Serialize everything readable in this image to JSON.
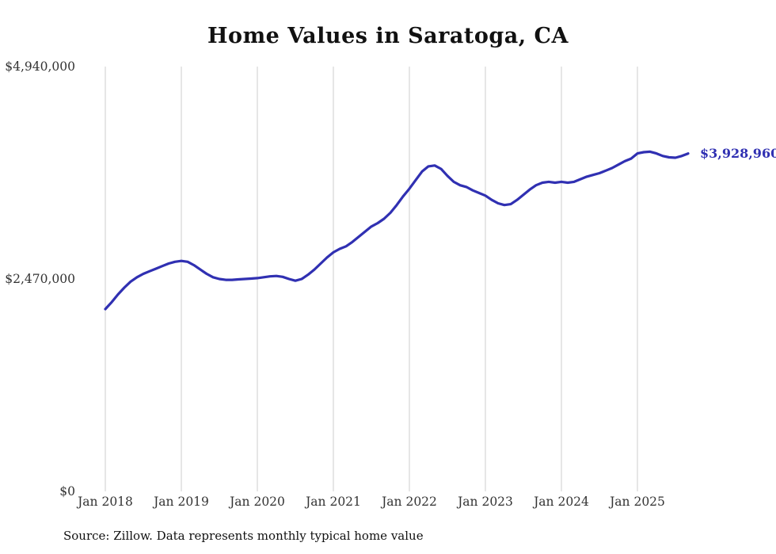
{
  "chart": {
    "title": "Home Values in Saratoga, CA",
    "source": "Source: Zillow. Data represents monthly typical home value",
    "latest_label": "$3,928,960",
    "line_color": "#3030b2",
    "grid_color": "#cccccc"
  },
  "chart_data": {
    "type": "line",
    "title": "Home Values in Saratoga, CA",
    "x_start": "Jan 2018",
    "x_interval": "monthly",
    "x_tick_labels": [
      "Jan 2018",
      "Jan 2019",
      "Jan 2020",
      "Jan 2021",
      "Jan 2022",
      "Jan 2023",
      "Jan 2024",
      "Jan 2025"
    ],
    "y_ticks": [
      {
        "value": 0,
        "label": "$0"
      },
      {
        "value": 2470000,
        "label": "$2,470,000"
      },
      {
        "value": 4940000,
        "label": "$4,940,000"
      }
    ],
    "ylim": [
      0,
      4940000
    ],
    "grid": "vertical-only",
    "legend": "none",
    "latest_value": 3928960,
    "values": [
      2120000,
      2200000,
      2290000,
      2370000,
      2440000,
      2490000,
      2530000,
      2560000,
      2590000,
      2620000,
      2650000,
      2670000,
      2680000,
      2670000,
      2630000,
      2580000,
      2530000,
      2490000,
      2470000,
      2460000,
      2460000,
      2465000,
      2470000,
      2475000,
      2480000,
      2490000,
      2500000,
      2505000,
      2495000,
      2470000,
      2450000,
      2470000,
      2520000,
      2580000,
      2650000,
      2720000,
      2780000,
      2820000,
      2850000,
      2900000,
      2960000,
      3020000,
      3080000,
      3120000,
      3170000,
      3240000,
      3330000,
      3430000,
      3520000,
      3620000,
      3720000,
      3780000,
      3790000,
      3750000,
      3670000,
      3600000,
      3560000,
      3540000,
      3500000,
      3470000,
      3440000,
      3390000,
      3350000,
      3330000,
      3340000,
      3390000,
      3450000,
      3510000,
      3560000,
      3590000,
      3600000,
      3590000,
      3600000,
      3590000,
      3600000,
      3630000,
      3660000,
      3680000,
      3700000,
      3730000,
      3760000,
      3800000,
      3840000,
      3870000,
      3930000,
      3945000,
      3950000,
      3930000,
      3900000,
      3885000,
      3880000,
      3900000,
      3928960
    ]
  }
}
